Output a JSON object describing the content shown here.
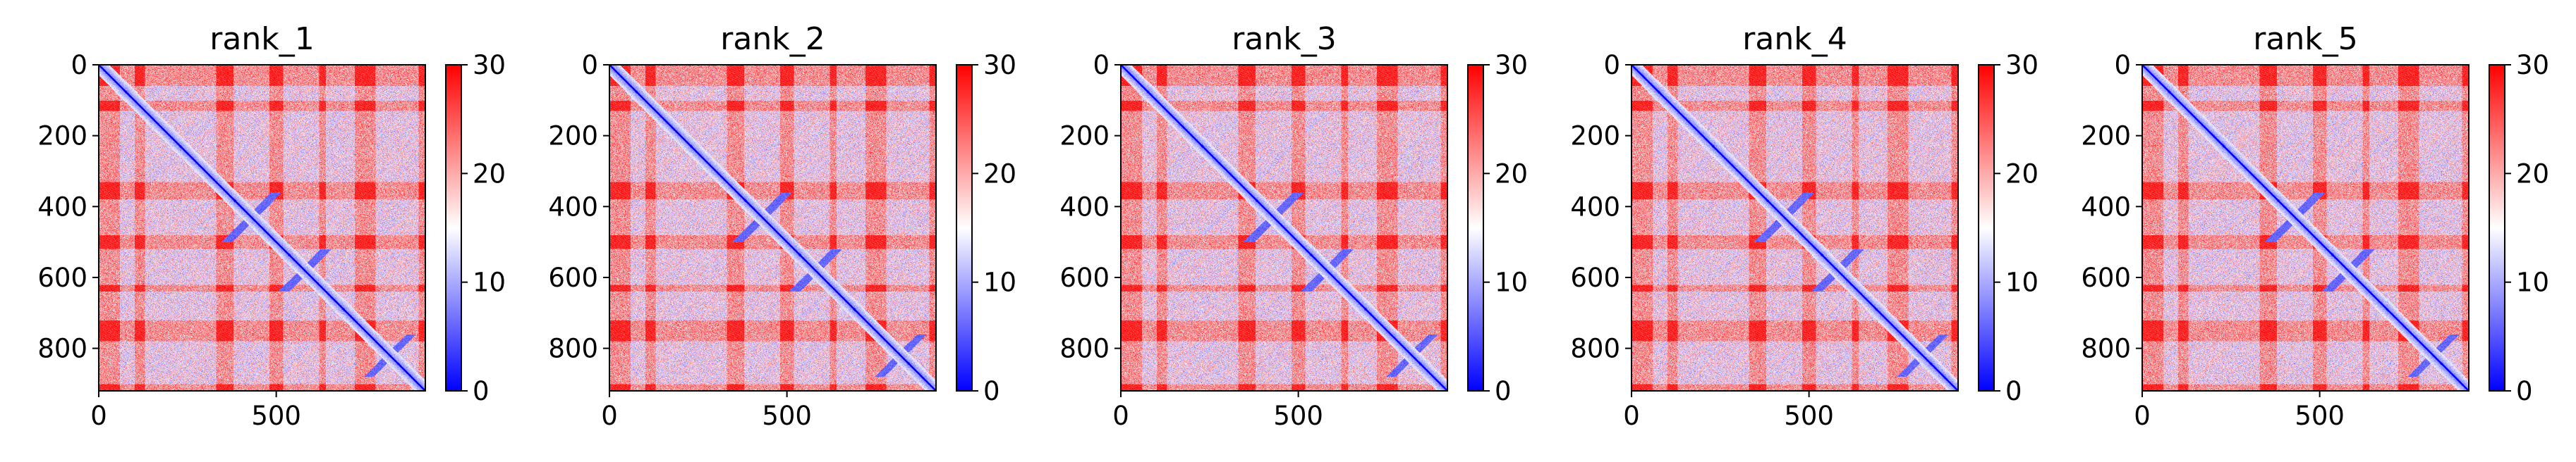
{
  "chart_data": [
    {
      "type": "heatmap",
      "title": "rank_1",
      "matrix_size": 920,
      "xlim": [
        0,
        920
      ],
      "ylim": [
        920,
        0
      ],
      "xticks": [
        0,
        500
      ],
      "yticks": [
        0,
        200,
        400,
        600,
        800
      ],
      "colorbar": {
        "min": 0,
        "max": 30,
        "ticks": [
          0,
          10,
          20,
          30
        ],
        "colormap": "bwr",
        "low_color": "#0000ff",
        "mid_color": "#ffffff",
        "high_color": "#ff0000"
      }
    },
    {
      "type": "heatmap",
      "title": "rank_2",
      "matrix_size": 920,
      "xlim": [
        0,
        920
      ],
      "ylim": [
        920,
        0
      ],
      "xticks": [
        0,
        500
      ],
      "yticks": [
        0,
        200,
        400,
        600,
        800
      ],
      "colorbar": {
        "min": 0,
        "max": 30,
        "ticks": [
          0,
          10,
          20,
          30
        ],
        "colormap": "bwr",
        "low_color": "#0000ff",
        "mid_color": "#ffffff",
        "high_color": "#ff0000"
      }
    },
    {
      "type": "heatmap",
      "title": "rank_3",
      "matrix_size": 920,
      "xlim": [
        0,
        920
      ],
      "ylim": [
        920,
        0
      ],
      "xticks": [
        0,
        500
      ],
      "yticks": [
        0,
        200,
        400,
        600,
        800
      ],
      "colorbar": {
        "min": 0,
        "max": 30,
        "ticks": [
          0,
          10,
          20,
          30
        ],
        "colormap": "bwr",
        "low_color": "#0000ff",
        "mid_color": "#ffffff",
        "high_color": "#ff0000"
      }
    },
    {
      "type": "heatmap",
      "title": "rank_4",
      "matrix_size": 920,
      "xlim": [
        0,
        920
      ],
      "ylim": [
        920,
        0
      ],
      "xticks": [
        0,
        500
      ],
      "yticks": [
        0,
        200,
        400,
        600,
        800
      ],
      "colorbar": {
        "min": 0,
        "max": 30,
        "ticks": [
          0,
          10,
          20,
          30
        ],
        "colormap": "bwr",
        "low_color": "#0000ff",
        "mid_color": "#ffffff",
        "high_color": "#ff0000"
      }
    },
    {
      "type": "heatmap",
      "title": "rank_5",
      "matrix_size": 920,
      "xlim": [
        0,
        920
      ],
      "ylim": [
        920,
        0
      ],
      "xticks": [
        0,
        500
      ],
      "yticks": [
        0,
        200,
        400,
        600,
        800
      ],
      "colorbar": {
        "min": 0,
        "max": 30,
        "ticks": [
          0,
          10,
          20,
          30
        ],
        "colormap": "bwr",
        "low_color": "#0000ff",
        "mid_color": "#ffffff",
        "high_color": "#ff0000"
      }
    }
  ]
}
